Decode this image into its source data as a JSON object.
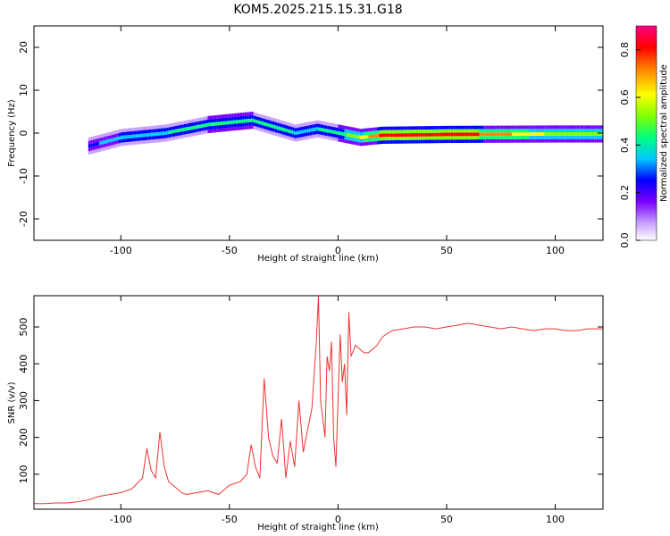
{
  "title": "KOM5.2025.215.15.31.G18",
  "chart_data": [
    {
      "type": "heatmap",
      "xlabel": "Height of straight line (km)",
      "ylabel": "Frequency (Hz)",
      "xlim": [
        -140,
        122
      ],
      "ylim": [
        -25,
        25
      ],
      "xticks": [
        -100,
        -50,
        0,
        50,
        100
      ],
      "yticks": [
        -20,
        -10,
        0,
        10,
        20
      ],
      "colorbar": {
        "label": "Normalized spectral amplitude",
        "range": [
          0,
          0.9
        ],
        "ticks": [
          0.0,
          0.2,
          0.4,
          0.6,
          0.8
        ],
        "colors": [
          "#ffffff",
          "#c8a0ff",
          "#7a00ff",
          "#0000ff",
          "#00c8ff",
          "#00ff80",
          "#80ff00",
          "#ffff00",
          "#ff8000",
          "#ff0000",
          "#ff0080"
        ]
      },
      "features": [
        {
          "description_label": "main signal",
          "x": [
            -115,
            -100,
            -80,
            -60,
            -40,
            -20,
            -10,
            0,
            10,
            20,
            50,
            100,
            122
          ],
          "freq": [
            -3,
            -1,
            0,
            2,
            3,
            0,
            1,
            0,
            -1,
            -0.5,
            -0.3,
            -0.2,
            -0.2
          ],
          "amplitude": [
            0.3,
            0.35,
            0.4,
            0.45,
            0.45,
            0.4,
            0.4,
            0.45,
            0.6,
            0.8,
            0.85,
            0.55,
            0.5
          ]
        }
      ]
    },
    {
      "type": "line",
      "xlabel": "Height of straight line (km)",
      "ylabel": "SNR (v/v)",
      "xlim": [
        -140,
        122
      ],
      "ylim": [
        5,
        585
      ],
      "xticks": [
        -100,
        -50,
        0,
        50,
        100
      ],
      "yticks": [
        100,
        200,
        300,
        400,
        500
      ],
      "series": [
        {
          "color": "#ee3333",
          "x": [
            -140,
            -135,
            -130,
            -125,
            -120,
            -115,
            -110,
            -105,
            -100,
            -95,
            -90,
            -88,
            -86,
            -84,
            -82,
            -80,
            -78,
            -76,
            -74,
            -72,
            -70,
            -65,
            -60,
            -55,
            -50,
            -45,
            -42,
            -40,
            -38,
            -36,
            -34,
            -32,
            -30,
            -28,
            -26,
            -24,
            -22,
            -20,
            -18,
            -16,
            -14,
            -12,
            -10,
            -9,
            -8,
            -7,
            -6,
            -5,
            -4,
            -3,
            -2,
            -1,
            0,
            1,
            2,
            3,
            4,
            5,
            6,
            8,
            10,
            12,
            14,
            16,
            18,
            20,
            22,
            25,
            30,
            35,
            40,
            45,
            50,
            55,
            60,
            65,
            70,
            75,
            80,
            85,
            90,
            95,
            100,
            105,
            110,
            115,
            122
          ],
          "y": [
            20,
            20,
            22,
            22,
            25,
            30,
            40,
            45,
            50,
            60,
            90,
            170,
            110,
            90,
            215,
            120,
            80,
            70,
            60,
            50,
            45,
            50,
            55,
            45,
            70,
            80,
            100,
            180,
            120,
            90,
            360,
            200,
            150,
            130,
            250,
            90,
            190,
            120,
            300,
            160,
            220,
            280,
            460,
            585,
            300,
            250,
            200,
            420,
            380,
            460,
            200,
            120,
            300,
            480,
            350,
            400,
            260,
            540,
            420,
            450,
            440,
            430,
            430,
            440,
            450,
            470,
            480,
            490,
            495,
            500,
            500,
            495,
            500,
            505,
            510,
            505,
            500,
            495,
            500,
            495,
            490,
            495,
            495,
            490,
            490,
            495,
            495
          ]
        }
      ]
    }
  ]
}
